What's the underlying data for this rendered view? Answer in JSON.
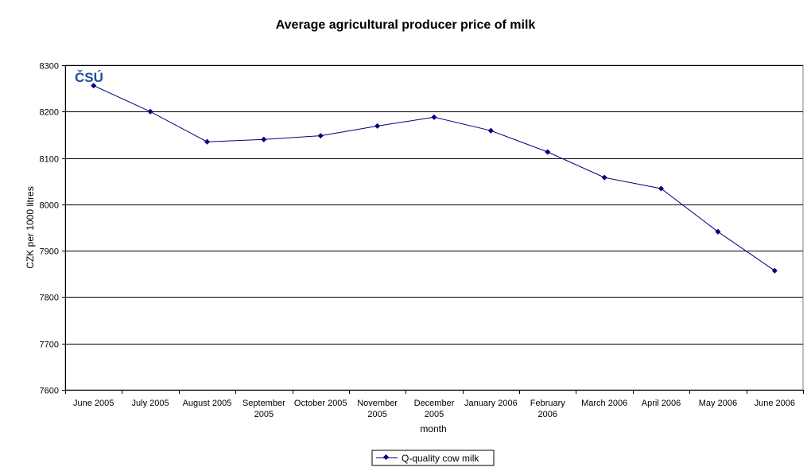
{
  "chart_data": {
    "type": "line",
    "title": "Average agricultural producer price of milk",
    "xlabel": "month",
    "ylabel": "CZK per 1000 litres",
    "ylim": [
      7600,
      8300
    ],
    "ytick_step": 100,
    "grid": true,
    "legend_position": "bottom-center",
    "categories": [
      [
        "June 2005"
      ],
      [
        "July 2005"
      ],
      [
        "August 2005"
      ],
      [
        "September",
        "2005"
      ],
      [
        "October 2005"
      ],
      [
        "November",
        "2005"
      ],
      [
        "December",
        "2005"
      ],
      [
        "January 2006"
      ],
      [
        "February",
        "2006"
      ],
      [
        "March 2006"
      ],
      [
        "April 2006"
      ],
      [
        "May 2006"
      ],
      [
        "June 2006"
      ]
    ],
    "series": [
      {
        "name": "Q-quality cow milk",
        "color": "#000080",
        "values": [
          8256,
          8200,
          8135,
          8140,
          8148,
          8169,
          8188,
          8159,
          8113,
          8058,
          8034,
          7941,
          7857
        ]
      }
    ],
    "logo": "ČSÚ",
    "logo_color": "#1f4e9a"
  }
}
